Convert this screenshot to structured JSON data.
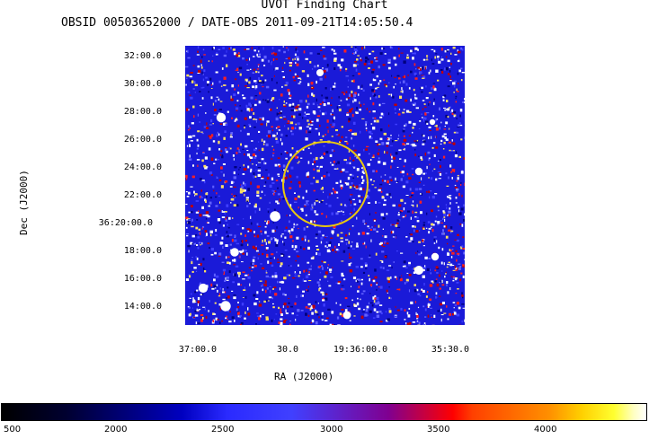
{
  "chart_data": {
    "type": "heatmap",
    "title": "UVOT Finding Chart",
    "subtitle": "OBSID 00503652000 / DATE-OBS 2011-09-21T14:05:50.4",
    "xlabel": "RA (J2000)",
    "ylabel": "Dec (J2000)",
    "x_ticks": [
      "37:00.0",
      "30.0",
      "19:36:00.0",
      "35:30.0"
    ],
    "y_ticks": [
      "32:00.0",
      "30:00.0",
      "28:00.0",
      "26:00.0",
      "24:00.0",
      "22:00.0",
      "36:20:00.0",
      "18:00.0",
      "16:00.0",
      "14:00.0"
    ],
    "colorbar_ticks": [
      "500",
      "2000",
      "2500",
      "3000",
      "3500",
      "4000"
    ],
    "colors": {
      "background": "#1a1ad8",
      "circle": "#e8c810"
    }
  }
}
